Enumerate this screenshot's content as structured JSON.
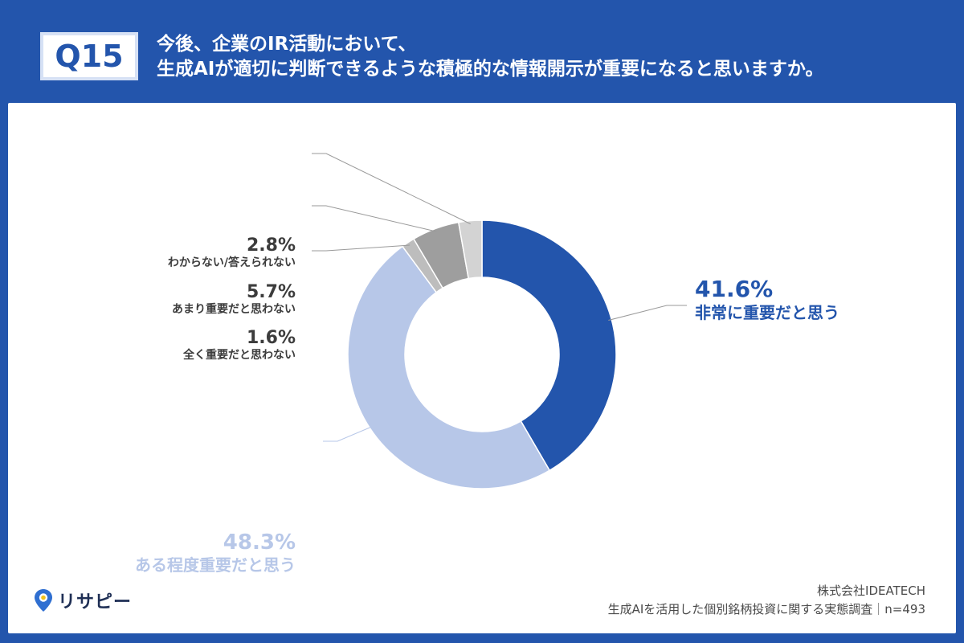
{
  "header": {
    "badge": "Q15",
    "question_line1": "今後、企業のIR活動において、",
    "question_line2": "生成AIが適切に判断できるような積極的な情報開示が重要になると思いますか。"
  },
  "chart_data": {
    "type": "pie",
    "donut": true,
    "title": "",
    "categories": [
      "非常に重要だと思う",
      "ある程度重要だと思う",
      "全く重要だと思わない",
      "あまり重要だと思わない",
      "わからない/答えられない"
    ],
    "values": [
      41.6,
      48.3,
      1.6,
      5.7,
      2.8
    ],
    "value_labels": [
      "41.6%",
      "48.3%",
      "1.6%",
      "5.7%",
      "2.8%"
    ],
    "colors": [
      "#2355ac",
      "#b7c7e8",
      "#bdbdbd",
      "#9e9e9e",
      "#d3d3d3"
    ],
    "start": "12 o'clock, clockwise"
  },
  "logo": {
    "text": "リサピー"
  },
  "footer": {
    "company": "株式会社IDEATECH",
    "survey": "生成AIを活用した個別銘柄投資に関する実態調査｜n=493"
  }
}
